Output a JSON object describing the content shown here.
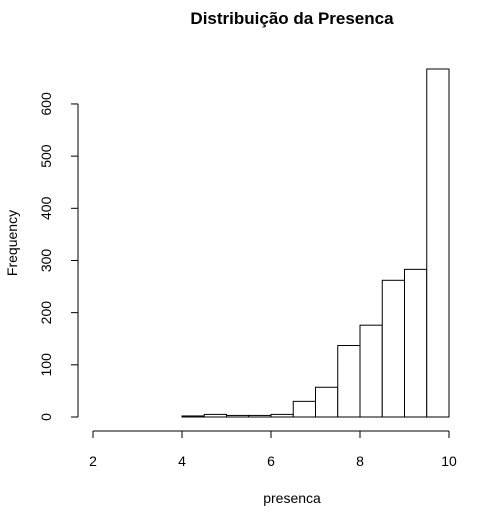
{
  "chart_data": {
    "type": "bar",
    "title": "Distribuição da Presenca",
    "xlabel": "presenca",
    "ylabel": "Frequency",
    "bins": [
      {
        "start": 4.0,
        "end": 4.5,
        "count": 2
      },
      {
        "start": 4.5,
        "end": 5.0,
        "count": 5
      },
      {
        "start": 5.0,
        "end": 5.5,
        "count": 3
      },
      {
        "start": 5.5,
        "end": 6.0,
        "count": 3
      },
      {
        "start": 6.0,
        "end": 6.5,
        "count": 5
      },
      {
        "start": 6.5,
        "end": 7.0,
        "count": 30
      },
      {
        "start": 7.0,
        "end": 7.5,
        "count": 57
      },
      {
        "start": 7.5,
        "end": 8.0,
        "count": 137
      },
      {
        "start": 8.0,
        "end": 8.5,
        "count": 176
      },
      {
        "start": 8.5,
        "end": 9.0,
        "count": 262
      },
      {
        "start": 9.0,
        "end": 9.5,
        "count": 283
      },
      {
        "start": 9.5,
        "end": 10.0,
        "count": 667
      }
    ],
    "xlim": [
      2,
      10
    ],
    "ylim": [
      0,
      667
    ],
    "xticks": [
      "2",
      "4",
      "6",
      "8",
      "10"
    ],
    "yticks": [
      "0",
      "100",
      "200",
      "300",
      "400",
      "500",
      "600"
    ],
    "grid": false,
    "colors": {
      "bar_fill": "#ffffff",
      "bar_stroke": "#000000"
    }
  }
}
